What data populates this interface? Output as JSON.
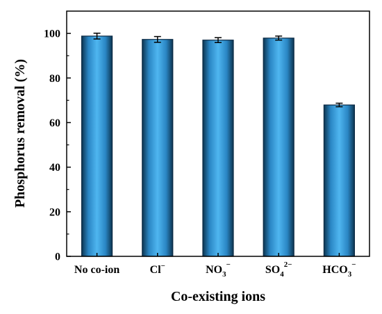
{
  "chart_data": {
    "type": "bar",
    "xlabel": "Co-existing ions",
    "ylabel": "Phosphorus removal (%)",
    "ylim": [
      0,
      110
    ],
    "yticks": [
      0,
      20,
      40,
      60,
      80,
      100
    ],
    "categories": [
      {
        "main": "No co-ion",
        "sub": "",
        "sup": ""
      },
      {
        "main": "Cl",
        "sub": "",
        "sup": "−"
      },
      {
        "main": "NO",
        "sub": "3",
        "sup": "−"
      },
      {
        "main": "SO",
        "sub": "4",
        "sup": "2−"
      },
      {
        "main": "HCO",
        "sub": "3",
        "sup": "−"
      }
    ],
    "values": [
      98.8,
      97.3,
      97.0,
      97.9,
      67.9
    ],
    "errors": [
      1.3,
      1.3,
      1.1,
      0.9,
      0.8
    ],
    "bar_color": "#3aa0e0",
    "bar_edge": "#0b2a44",
    "grid": false
  }
}
